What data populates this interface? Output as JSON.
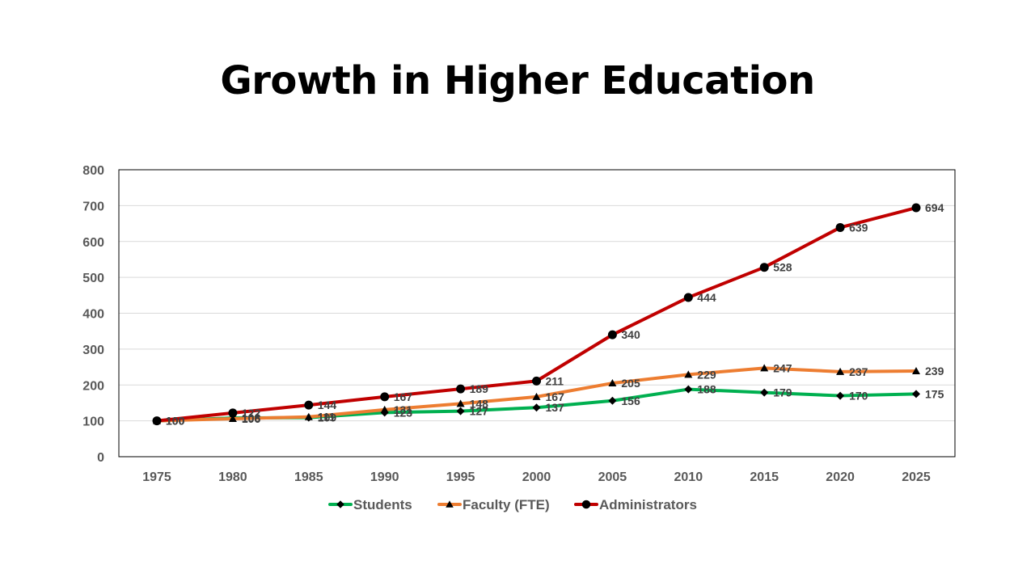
{
  "chart_data": {
    "type": "line",
    "title": "Growth in Higher Education",
    "x": [
      "1975",
      "1980",
      "1985",
      "1990",
      "1995",
      "2000",
      "2005",
      "2010",
      "2015",
      "2020",
      "2025"
    ],
    "ylim": [
      0,
      800
    ],
    "yticks": [
      0,
      100,
      200,
      300,
      400,
      500,
      600,
      700,
      800
    ],
    "grid": true,
    "legend_position": "bottom",
    "series": [
      {
        "name": "Students",
        "color": "#00B050",
        "marker": "diamond",
        "values": [
          100,
          108,
          109,
          123,
          127,
          137,
          156,
          188,
          179,
          170,
          175
        ]
      },
      {
        "name": "Faculty (FTE)",
        "color": "#ED7D31",
        "marker": "triangle",
        "values": [
          100,
          106,
          111,
          131,
          148,
          167,
          205,
          229,
          247,
          237,
          239
        ]
      },
      {
        "name": "Administrators",
        "color": "#C00000",
        "marker": "circle",
        "values": [
          100,
          122,
          144,
          167,
          189,
          211,
          340,
          444,
          528,
          639,
          694
        ]
      }
    ]
  }
}
